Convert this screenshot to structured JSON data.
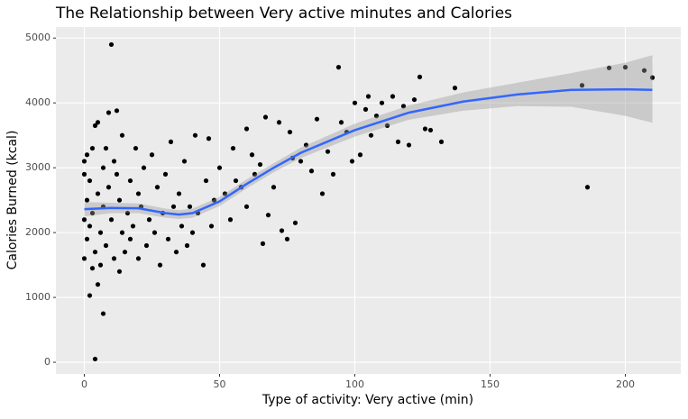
{
  "chart_data": {
    "type": "scatter",
    "title": "The Relationship between Very active minutes and Calories",
    "x_label": "Type of activity: Very active (min)",
    "y_label": "Calories Burned (kcal)",
    "xlim": [
      -10.5,
      220.5
    ],
    "ylim": [
      -180,
      5170
    ],
    "xticks": [
      0,
      50,
      100,
      150,
      200
    ],
    "yticks": [
      0,
      1000,
      2000,
      3000,
      4000,
      5000
    ],
    "grid": true,
    "color": "#000000",
    "x": [
      0,
      0,
      0,
      0,
      1,
      1,
      1,
      2,
      2,
      2,
      3,
      3,
      3,
      4,
      4,
      4,
      5,
      5,
      5,
      6,
      6,
      7,
      7,
      7,
      8,
      8,
      9,
      9,
      10,
      10,
      11,
      11,
      12,
      12,
      13,
      13,
      14,
      14,
      15,
      16,
      17,
      17,
      18,
      19,
      20,
      20,
      21,
      22,
      23,
      24,
      25,
      26,
      27,
      28,
      29,
      30,
      31,
      32,
      33,
      34,
      35,
      36,
      37,
      38,
      39,
      40,
      41,
      42,
      44,
      45,
      46,
      47,
      48,
      50,
      52,
      54,
      55,
      56,
      58,
      60,
      60,
      62,
      63,
      65,
      66,
      67,
      68,
      70,
      72,
      73,
      75,
      76,
      77,
      78,
      80,
      82,
      84,
      86,
      88,
      90,
      92,
      94,
      95,
      97,
      99,
      100,
      102,
      104,
      105,
      106,
      108,
      110,
      112,
      114,
      116,
      118,
      120,
      122,
      124,
      126,
      128,
      132,
      137,
      184,
      186,
      194,
      200,
      207,
      210
    ],
    "y": [
      2200,
      2900,
      3100,
      1600,
      2500,
      1900,
      3200,
      2100,
      1030,
      2800,
      1450,
      3300,
      2300,
      50,
      3650,
      1700,
      1200,
      2600,
      3700,
      2000,
      1500,
      750,
      2400,
      3000,
      3300,
      1800,
      2700,
      3850,
      4900,
      2200,
      1600,
      3100,
      2900,
      3880,
      1400,
      2500,
      3500,
      2000,
      1700,
      2300,
      2800,
      1900,
      2100,
      3300,
      1600,
      2600,
      2400,
      3000,
      1800,
      2200,
      3200,
      2000,
      2700,
      1500,
      2300,
      2900,
      1900,
      3400,
      2400,
      1700,
      2600,
      2100,
      3100,
      1800,
      2400,
      2000,
      3500,
      2300,
      1500,
      2800,
      3450,
      2100,
      2500,
      3000,
      2600,
      2200,
      3300,
      2800,
      2700,
      3600,
      2400,
      3200,
      2900,
      3050,
      1830,
      3780,
      2270,
      2700,
      3700,
      2030,
      1900,
      3550,
      3150,
      2150,
      3100,
      3350,
      2950,
      3750,
      2600,
      3250,
      2900,
      4550,
      3700,
      3550,
      3100,
      4000,
      3200,
      3900,
      4100,
      3500,
      3800,
      4000,
      3650,
      4100,
      3400,
      3950,
      3350,
      4050,
      4400,
      3600,
      3580,
      3400,
      4230,
      4270,
      2700,
      4540,
      4550,
      4500,
      4390
    ],
    "smooth": {
      "color": "#3366ff",
      "x": [
        0,
        10,
        20,
        30,
        35,
        40,
        50,
        60,
        70,
        80,
        100,
        120,
        140,
        160,
        180,
        200,
        210
      ],
      "y": [
        2361,
        2380,
        2375,
        2300,
        2278,
        2300,
        2480,
        2750,
        3000,
        3230,
        3580,
        3850,
        4020,
        4130,
        4200,
        4210,
        4200
      ],
      "ymin": [
        2250,
        2300,
        2300,
        2230,
        2210,
        2230,
        2410,
        2680,
        2930,
        3150,
        3480,
        3740,
        3880,
        3950,
        3940,
        3800,
        3694
      ],
      "ymax": [
        2470,
        2460,
        2450,
        2370,
        2346,
        2370,
        2550,
        2820,
        3070,
        3310,
        3680,
        3960,
        4160,
        4310,
        4460,
        4620,
        4736
      ]
    }
  }
}
